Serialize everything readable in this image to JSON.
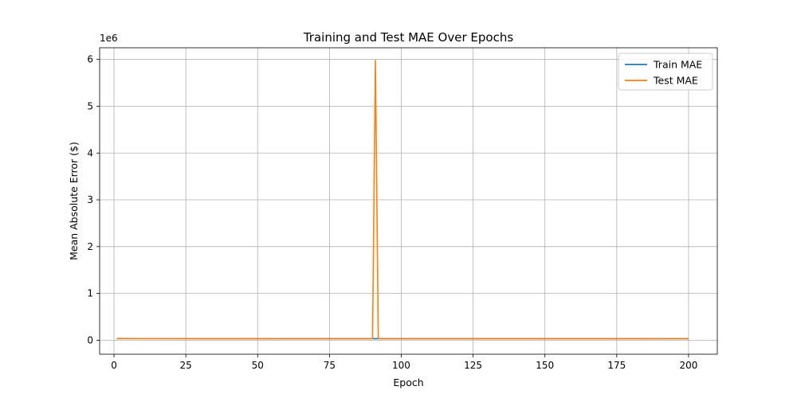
{
  "chart_data": {
    "type": "line",
    "title": "Training and Test MAE Over Epochs",
    "xlabel": "Epoch",
    "ylabel": "Mean Absolute Error ($)",
    "y_offset_label": "1e6",
    "xlim": [
      -5.0,
      210.0
    ],
    "ylim": [
      -0.3,
      6.25
    ],
    "y_scale_factor": 1000000,
    "x_ticks": [
      0,
      25,
      50,
      75,
      100,
      125,
      150,
      175,
      200
    ],
    "y_ticks": [
      0,
      1,
      2,
      3,
      4,
      5,
      6
    ],
    "grid": true,
    "legend_position": "upper-right",
    "series": [
      {
        "name": "Train MAE",
        "color": "#1f77b4",
        "x": [
          1,
          90,
          91,
          92,
          200
        ],
        "y": [
          34000,
          33000,
          33000,
          33000,
          32000
        ]
      },
      {
        "name": "Test MAE",
        "color": "#ff7f0e",
        "x": [
          1,
          10,
          20,
          30,
          40,
          50,
          60,
          70,
          80,
          89,
          90,
          91,
          92,
          93,
          100,
          110,
          120,
          130,
          140,
          150,
          160,
          170,
          180,
          190,
          195,
          200
        ],
        "y": [
          38000,
          36000,
          36000,
          35000,
          35000,
          35000,
          34000,
          34000,
          34000,
          34000,
          34000,
          5980000,
          34000,
          34000,
          34000,
          34000,
          34000,
          33000,
          33000,
          33000,
          33000,
          33000,
          33000,
          34000,
          36000,
          34000
        ]
      }
    ]
  }
}
